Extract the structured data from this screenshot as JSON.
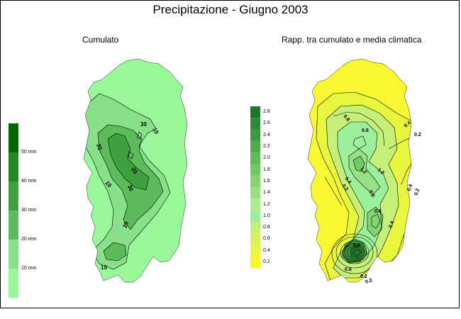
{
  "title": "Precipitazione - Giugno 2003",
  "maps": [
    {
      "title": "Cumulato",
      "legend": {
        "labels": [
          "50 mm",
          "40 mm",
          "30 mm",
          "20 mm",
          "10 mm"
        ],
        "colors": [
          "#006a00",
          "#1f8a1f",
          "#3ea03e",
          "#5cbc5c",
          "#88e088",
          "#99f899"
        ]
      },
      "contour_labels": [
        "10",
        "20",
        "20",
        "30",
        "30",
        "20",
        "10",
        "10"
      ]
    },
    {
      "title": "Rapp. tra cumulato e media climatica",
      "legend": {
        "labels": [
          "2.8",
          "2.6",
          "2.4",
          "2.2",
          "2.0",
          "1.8",
          "1.6",
          "1.4",
          "1.2",
          "1.0",
          "0.8",
          "0.6",
          "0.4",
          "0.2"
        ],
        "colors": [
          "#1a7a2a",
          "#2c8a34",
          "#3c9a3e",
          "#4eac4a",
          "#60bc58",
          "#72c864",
          "#84d474",
          "#98e084",
          "#acec96",
          "#9cf09c",
          "#c4f07a",
          "#d8f45a",
          "#e8f63e",
          "#f8f830"
        ]
      },
      "contour_labels": [
        "0.8",
        "0.6",
        "0.4",
        "0.2",
        "1.2",
        "1.2",
        "0.8",
        "0.4",
        "0.2",
        "0.2",
        "0.4",
        "0.8",
        "0.4",
        "0.2",
        "0.6",
        "0.6",
        "0.2"
      ]
    }
  ]
}
